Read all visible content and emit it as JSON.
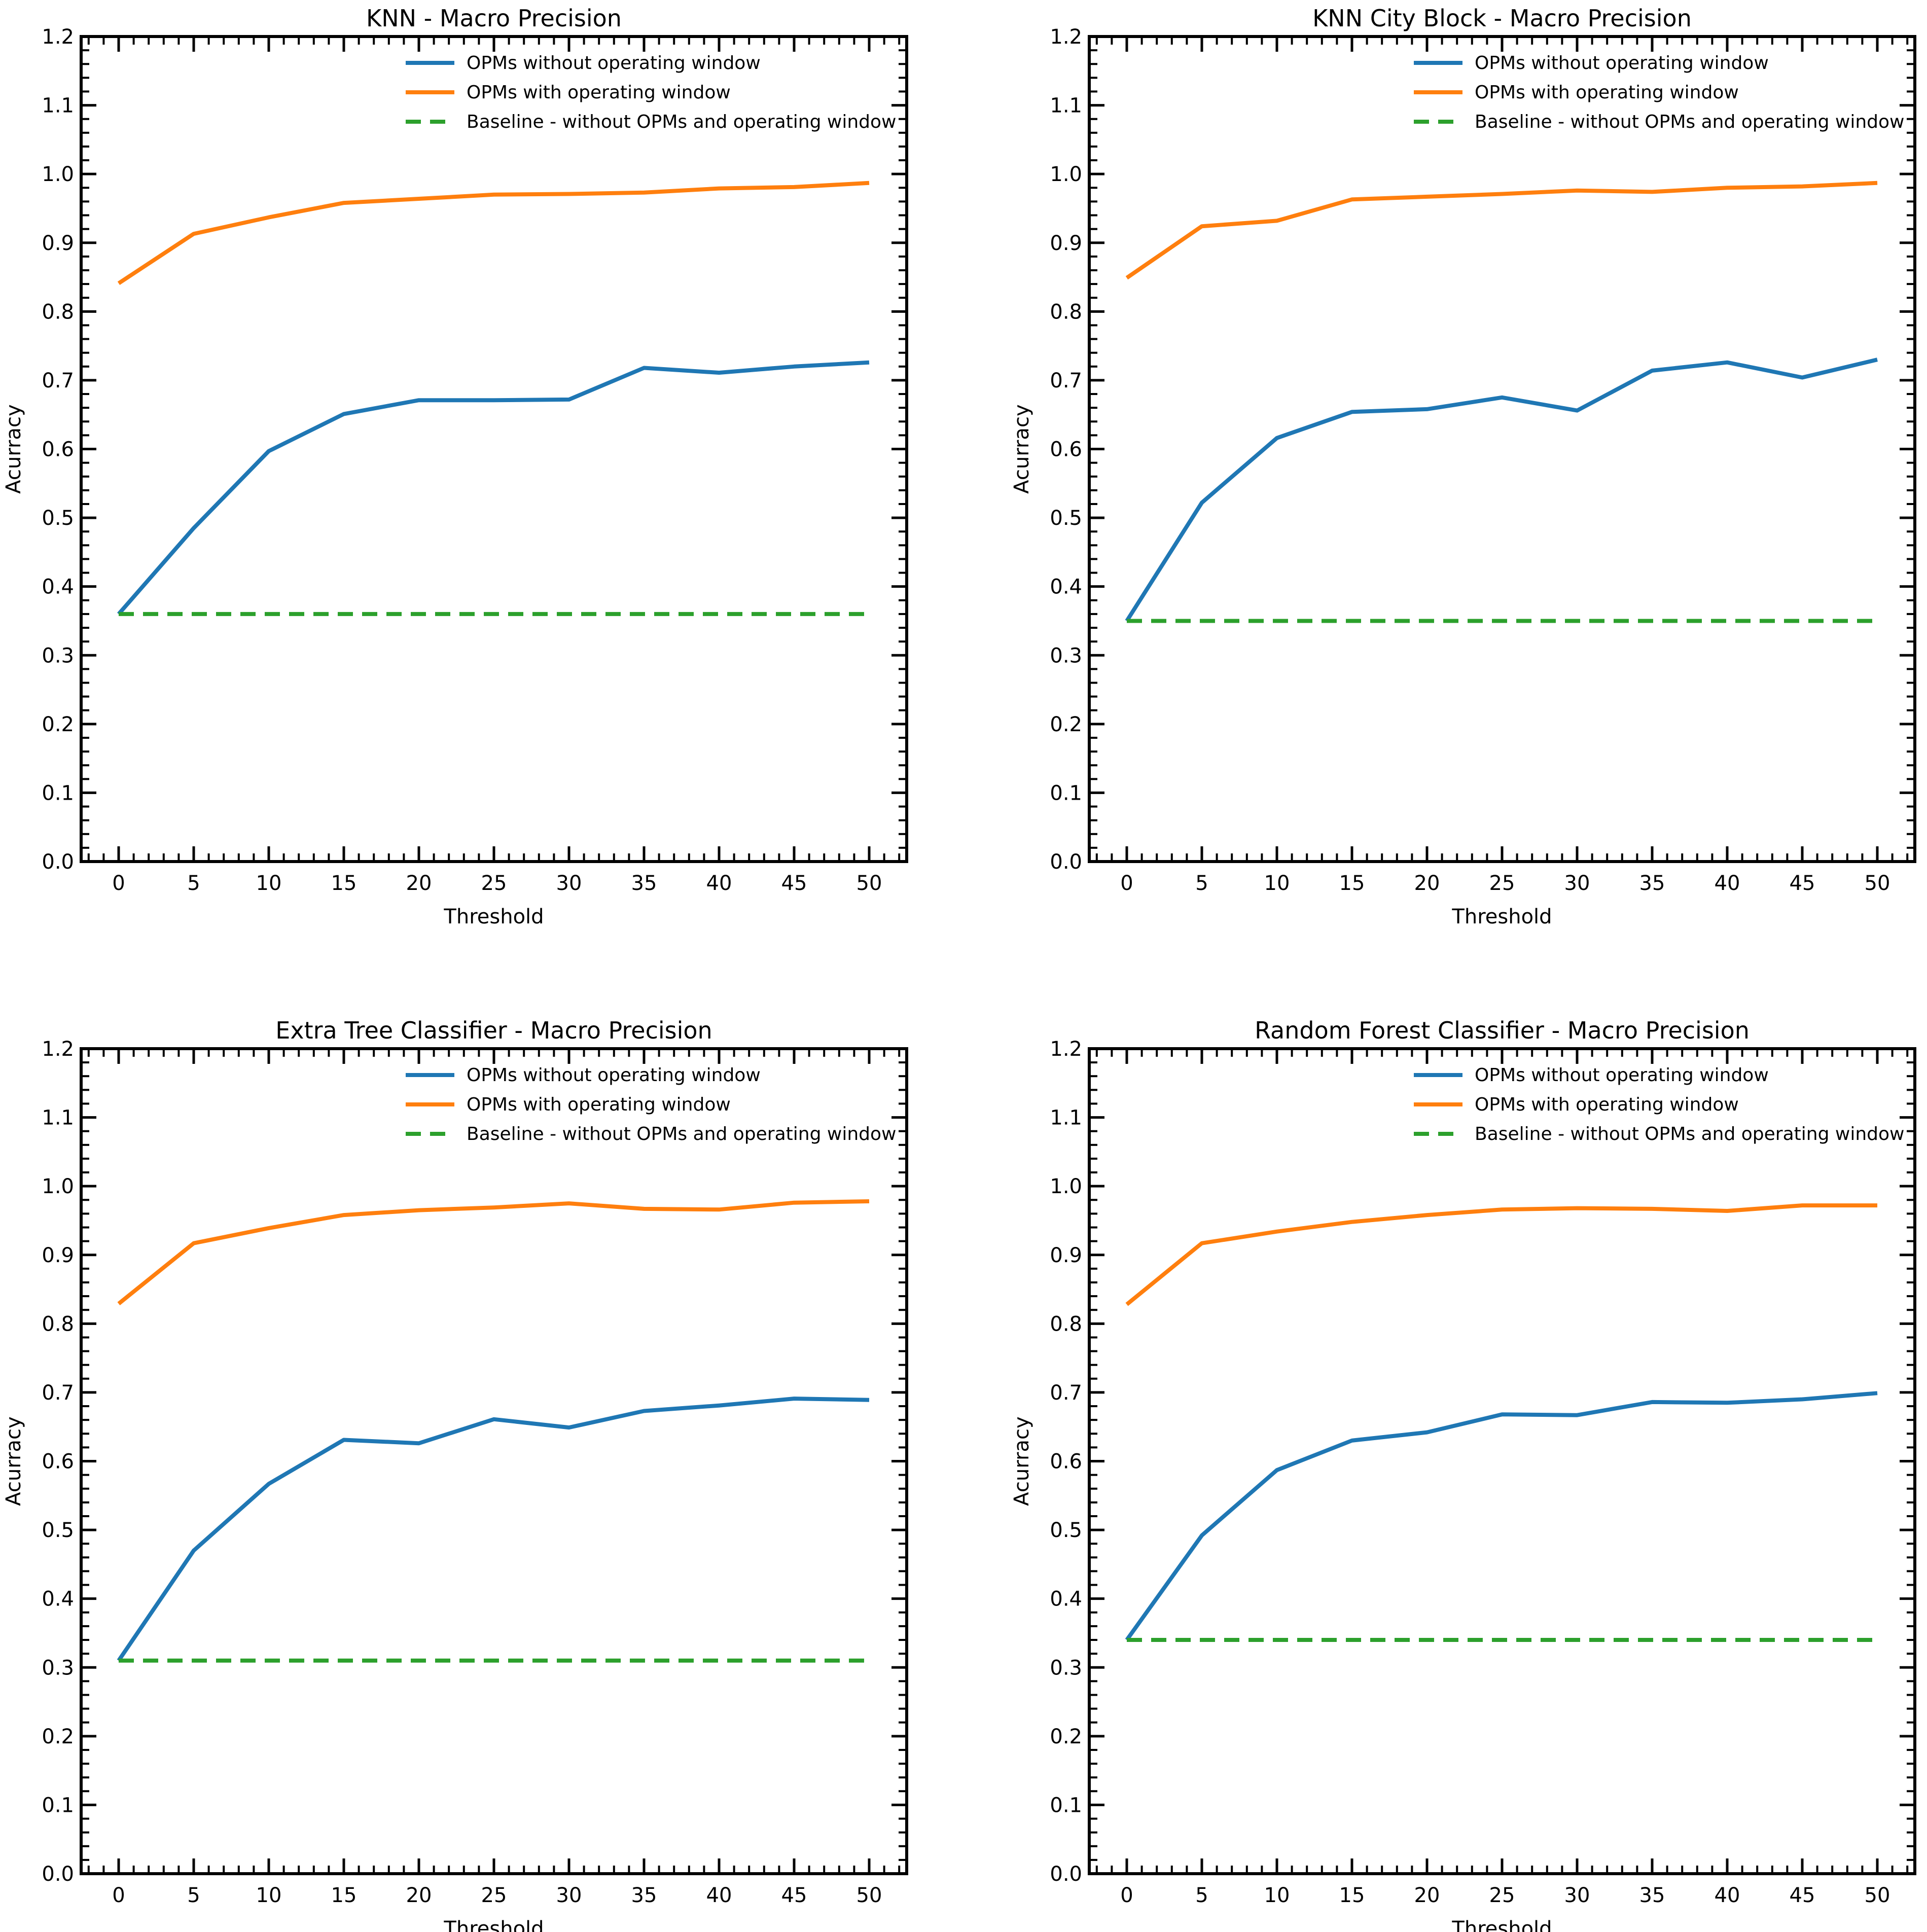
{
  "colors": {
    "series_1": "#1f77b4",
    "series_2": "#ff7f0e",
    "baseline": "#2ca02c",
    "axes": "#000000",
    "background": "#ffffff"
  },
  "chart_data": [
    {
      "type": "line",
      "title": "KNN - Macro Precision",
      "xlabel": "Threshold",
      "ylabel": "Acurracy",
      "x": [
        0,
        5,
        10,
        15,
        20,
        25,
        30,
        35,
        40,
        45,
        50
      ],
      "xticks": [
        "0",
        "5",
        "10",
        "15",
        "20",
        "25",
        "30",
        "35",
        "40",
        "45",
        "50"
      ],
      "yticks": [
        "0.0",
        "0.1",
        "0.2",
        "0.3",
        "0.4",
        "0.5",
        "0.6",
        "0.7",
        "0.8",
        "0.9",
        "1.0",
        "1.1",
        "1.2"
      ],
      "xlim": [
        -2.5,
        52.5
      ],
      "ylim": [
        0,
        1.2
      ],
      "grid": false,
      "legend": "top-right",
      "series": [
        {
          "name": "OPMs without operating window",
          "style": "solid",
          "color": "#1f77b4",
          "values": [
            0.36,
            0.485,
            0.597,
            0.651,
            0.671,
            0.671,
            0.672,
            0.718,
            0.711,
            0.72,
            0.726
          ]
        },
        {
          "name": "OPMs with operating window",
          "style": "solid",
          "color": "#ff7f0e",
          "values": [
            0.841,
            0.913,
            0.937,
            0.958,
            0.964,
            0.97,
            0.971,
            0.973,
            0.979,
            0.981,
            0.987
          ]
        },
        {
          "name": "Baseline - without OPMs and operating window",
          "style": "dashed",
          "color": "#2ca02c",
          "values": [
            0.36,
            0.36,
            0.36,
            0.36,
            0.36,
            0.36,
            0.36,
            0.36,
            0.36,
            0.36,
            0.36
          ]
        }
      ]
    },
    {
      "type": "line",
      "title": "KNN City Block  - Macro Precision",
      "xlabel": "Threshold",
      "ylabel": "Acurracy",
      "x": [
        0,
        5,
        10,
        15,
        20,
        25,
        30,
        35,
        40,
        45,
        50
      ],
      "xticks": [
        "0",
        "5",
        "10",
        "15",
        "20",
        "25",
        "30",
        "35",
        "40",
        "45",
        "50"
      ],
      "yticks": [
        "0.0",
        "0.1",
        "0.2",
        "0.3",
        "0.4",
        "0.5",
        "0.6",
        "0.7",
        "0.8",
        "0.9",
        "1.0",
        "1.1",
        "1.2"
      ],
      "xlim": [
        -2.5,
        52.5
      ],
      "ylim": [
        0,
        1.2
      ],
      "grid": false,
      "legend": "top-right",
      "series": [
        {
          "name": "OPMs without operating window",
          "style": "solid",
          "color": "#1f77b4",
          "values": [
            0.35,
            0.522,
            0.616,
            0.654,
            0.658,
            0.675,
            0.656,
            0.714,
            0.726,
            0.704,
            0.73
          ]
        },
        {
          "name": "OPMs with operating window",
          "style": "solid",
          "color": "#ff7f0e",
          "values": [
            0.849,
            0.924,
            0.932,
            0.963,
            0.967,
            0.971,
            0.976,
            0.974,
            0.98,
            0.982,
            0.987
          ]
        },
        {
          "name": "Baseline - without OPMs and operating window",
          "style": "dashed",
          "color": "#2ca02c",
          "values": [
            0.35,
            0.35,
            0.35,
            0.35,
            0.35,
            0.35,
            0.35,
            0.35,
            0.35,
            0.35,
            0.35
          ]
        }
      ]
    },
    {
      "type": "line",
      "title": "Extra Tree Classifier - Macro Precision",
      "xlabel": "Threshold",
      "ylabel": "Acurracy",
      "x": [
        0,
        5,
        10,
        15,
        20,
        25,
        30,
        35,
        40,
        45,
        50
      ],
      "xticks": [
        "0",
        "5",
        "10",
        "15",
        "20",
        "25",
        "30",
        "35",
        "40",
        "45",
        "50"
      ],
      "yticks": [
        "0.0",
        "0.1",
        "0.2",
        "0.3",
        "0.4",
        "0.5",
        "0.6",
        "0.7",
        "0.8",
        "0.9",
        "1.0",
        "1.1",
        "1.2"
      ],
      "xlim": [
        -2.5,
        52.5
      ],
      "ylim": [
        0,
        1.2
      ],
      "grid": false,
      "legend": "top-right",
      "series": [
        {
          "name": "OPMs without operating window",
          "style": "solid",
          "color": "#1f77b4",
          "values": [
            0.31,
            0.47,
            0.567,
            0.631,
            0.626,
            0.661,
            0.649,
            0.673,
            0.681,
            0.691,
            0.689
          ]
        },
        {
          "name": "OPMs with operating window",
          "style": "solid",
          "color": "#ff7f0e",
          "values": [
            0.829,
            0.917,
            0.939,
            0.958,
            0.965,
            0.969,
            0.975,
            0.967,
            0.966,
            0.976,
            0.978
          ]
        },
        {
          "name": "Baseline - without OPMs and operating window",
          "style": "dashed",
          "color": "#2ca02c",
          "values": [
            0.31,
            0.31,
            0.31,
            0.31,
            0.31,
            0.31,
            0.31,
            0.31,
            0.31,
            0.31,
            0.31
          ]
        }
      ]
    },
    {
      "type": "line",
      "title": "Random Forest Classifier - Macro Precision",
      "xlabel": "Threshold",
      "ylabel": "Acurracy",
      "x": [
        0,
        5,
        10,
        15,
        20,
        25,
        30,
        35,
        40,
        45,
        50
      ],
      "xticks": [
        "0",
        "5",
        "10",
        "15",
        "20",
        "25",
        "30",
        "35",
        "40",
        "45",
        "50"
      ],
      "yticks": [
        "0.0",
        "0.1",
        "0.2",
        "0.3",
        "0.4",
        "0.5",
        "0.6",
        "0.7",
        "0.8",
        "0.9",
        "1.0",
        "1.1",
        "1.2"
      ],
      "xlim": [
        -2.5,
        52.5
      ],
      "ylim": [
        0,
        1.2
      ],
      "grid": false,
      "legend": "top-right",
      "series": [
        {
          "name": "OPMs without operating window",
          "style": "solid",
          "color": "#1f77b4",
          "values": [
            0.34,
            0.492,
            0.587,
            0.63,
            0.642,
            0.668,
            0.667,
            0.686,
            0.685,
            0.69,
            0.699
          ]
        },
        {
          "name": "OPMs with operating window",
          "style": "solid",
          "color": "#ff7f0e",
          "values": [
            0.828,
            0.917,
            0.934,
            0.948,
            0.958,
            0.966,
            0.968,
            0.967,
            0.964,
            0.972,
            0.972
          ]
        },
        {
          "name": "Baseline - without OPMs and operating window",
          "style": "dashed",
          "color": "#2ca02c",
          "values": [
            0.34,
            0.34,
            0.34,
            0.34,
            0.34,
            0.34,
            0.34,
            0.34,
            0.34,
            0.34,
            0.34
          ]
        }
      ]
    }
  ]
}
